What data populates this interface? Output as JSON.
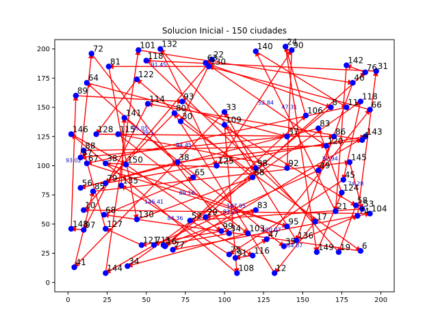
{
  "colors": {
    "edge": "#ff0000",
    "node": "#0000ff",
    "distance_text": "#0000cc"
  },
  "chart_data": {
    "type": "scatter",
    "title": "Solucion Inicial - 150 ciudades",
    "xlabel": "",
    "ylabel": "",
    "xlim": [
      -8.5,
      208.5
    ],
    "ylim": [
      -8,
      208
    ],
    "xticks": [
      0,
      25,
      50,
      75,
      100,
      125,
      150,
      175,
      200
    ],
    "yticks": [
      0,
      25,
      50,
      75,
      100,
      125,
      150,
      175,
      200
    ],
    "grid": false,
    "legend": "none",
    "cities": [
      {
        "id": "72",
        "x": 15,
        "y": 196
      },
      {
        "id": "81",
        "x": 26,
        "y": 185
      },
      {
        "id": "64",
        "x": 12,
        "y": 171
      },
      {
        "id": "89",
        "x": 5,
        "y": 160
      },
      {
        "id": "146",
        "x": 2,
        "y": 127
      },
      {
        "id": "128",
        "x": 18,
        "y": 127
      },
      {
        "id": "115",
        "x": 32,
        "y": 127
      },
      {
        "id": "141",
        "x": 36,
        "y": 141
      },
      {
        "id": "114",
        "x": 51,
        "y": 153
      },
      {
        "id": "122",
        "x": 44,
        "y": 174
      },
      {
        "id": "118",
        "x": 50,
        "y": 190
      },
      {
        "id": "101",
        "x": 45,
        "y": 199
      },
      {
        "id": "132",
        "x": 59,
        "y": 200
      },
      {
        "id": "93",
        "x": 73,
        "y": 155
      },
      {
        "id": "63",
        "x": 88,
        "y": 188
      },
      {
        "id": "22",
        "x": 92,
        "y": 191
      },
      {
        "id": "130",
        "x": 90,
        "y": 185
      },
      {
        "id": "140",
        "x": 120,
        "y": 198
      },
      {
        "id": "24",
        "x": 139,
        "y": 202
      },
      {
        "id": "90",
        "x": 143,
        "y": 199
      },
      {
        "id": "142",
        "x": 178,
        "y": 186
      },
      {
        "id": "76",
        "x": 190,
        "y": 180
      },
      {
        "id": "31",
        "x": 197,
        "y": 181
      },
      {
        "id": "46",
        "x": 182,
        "y": 171
      },
      {
        "id": "118b",
        "x": 187,
        "y": 155
      },
      {
        "id": "66",
        "x": 193,
        "y": 148
      },
      {
        "id": "11",
        "x": 178,
        "y": 150
      },
      {
        "id": "8",
        "x": 168,
        "y": 150
      },
      {
        "id": "83b",
        "x": 160,
        "y": 132
      },
      {
        "id": "86",
        "x": 170,
        "y": 125
      },
      {
        "id": "143",
        "x": 190,
        "y": 125
      },
      {
        "id": "4",
        "x": 188,
        "y": 122
      },
      {
        "id": "120",
        "x": 165,
        "y": 117
      },
      {
        "id": "145",
        "x": 180,
        "y": 103
      },
      {
        "id": "49",
        "x": 160,
        "y": 96
      },
      {
        "id": "45",
        "x": 176,
        "y": 88
      },
      {
        "id": "124",
        "x": 175,
        "y": 77
      },
      {
        "id": "58",
        "x": 184,
        "y": 66
      },
      {
        "id": "53",
        "x": 188,
        "y": 63
      },
      {
        "id": "104",
        "x": 193,
        "y": 59
      },
      {
        "id": "74",
        "x": 185,
        "y": 57
      },
      {
        "id": "21",
        "x": 171,
        "y": 61
      },
      {
        "id": "6",
        "x": 187,
        "y": 27
      },
      {
        "id": "19",
        "x": 173,
        "y": 26
      },
      {
        "id": "149",
        "x": 159,
        "y": 26
      },
      {
        "id": "136",
        "x": 146,
        "y": 36
      },
      {
        "id": "35",
        "x": 138,
        "y": 31
      },
      {
        "id": "12",
        "x": 132,
        "y": 8
      },
      {
        "id": "116",
        "x": 118,
        "y": 23
      },
      {
        "id": "108",
        "x": 108,
        "y": 8
      },
      {
        "id": "91",
        "x": 107,
        "y": 21
      },
      {
        "id": "75",
        "x": 103,
        "y": 24
      },
      {
        "id": "47",
        "x": 127,
        "y": 37
      },
      {
        "id": "17",
        "x": 158,
        "y": 52
      },
      {
        "id": "95",
        "x": 140,
        "y": 48
      },
      {
        "id": "103",
        "x": 115,
        "y": 42
      },
      {
        "id": "83",
        "x": 120,
        "y": 62
      },
      {
        "id": "34",
        "x": 103,
        "y": 42
      },
      {
        "id": "99",
        "x": 98,
        "y": 44
      },
      {
        "id": "29",
        "x": 88,
        "y": 56
      },
      {
        "id": "52",
        "x": 78,
        "y": 53
      },
      {
        "id": "77",
        "x": 67,
        "y": 28
      },
      {
        "id": "16",
        "x": 62,
        "y": 31
      },
      {
        "id": "3",
        "x": 61,
        "y": 32
      },
      {
        "id": "71",
        "x": 55,
        "y": 32
      },
      {
        "id": "121",
        "x": 47,
        "y": 32
      },
      {
        "id": "34b",
        "x": 38,
        "y": 14
      },
      {
        "id": "144",
        "x": 24,
        "y": 8
      },
      {
        "id": "41",
        "x": 4,
        "y": 13
      },
      {
        "id": "148",
        "x": 2,
        "y": 46
      },
      {
        "id": "97",
        "x": 10,
        "y": 45
      },
      {
        "id": "127",
        "x": 24,
        "y": 46
      },
      {
        "id": "10",
        "x": 10,
        "y": 62
      },
      {
        "id": "68",
        "x": 23,
        "y": 58
      },
      {
        "id": "130b",
        "x": 44,
        "y": 54
      },
      {
        "id": "56",
        "x": 8,
        "y": 81
      },
      {
        "id": "85",
        "x": 16,
        "y": 78
      },
      {
        "id": "79",
        "x": 24,
        "y": 85
      },
      {
        "id": "135",
        "x": 34,
        "y": 83
      },
      {
        "id": "57",
        "x": 8,
        "y": 107
      },
      {
        "id": "88",
        "x": 10,
        "y": 113
      },
      {
        "id": "67",
        "x": 12,
        "y": 102
      },
      {
        "id": "38",
        "x": 24,
        "y": 102
      },
      {
        "id": "150",
        "x": 37,
        "y": 101
      },
      {
        "id": "38b",
        "x": 70,
        "y": 103
      },
      {
        "id": "80",
        "x": 68,
        "y": 145
      },
      {
        "id": "30",
        "x": 72,
        "y": 138
      },
      {
        "id": "33",
        "x": 100,
        "y": 146
      },
      {
        "id": "109",
        "x": 100,
        "y": 135
      },
      {
        "id": "98",
        "x": 120,
        "y": 98
      },
      {
        "id": "88b",
        "x": 118,
        "y": 90
      },
      {
        "id": "92",
        "x": 140,
        "y": 98
      },
      {
        "id": "37",
        "x": 140,
        "y": 125
      },
      {
        "id": "106",
        "x": 152,
        "y": 143
      },
      {
        "id": "125",
        "x": 95,
        "y": 100
      },
      {
        "id": "65",
        "x": 80,
        "y": 90
      }
    ],
    "distance_labels": [
      "100.07",
      "95.05",
      "83.25",
      "89.16",
      "74.28",
      "91.45",
      "107.95",
      "146.41",
      "52.84",
      "52.94",
      "93.02",
      "47.31",
      "84.36",
      "84.07",
      "39.5",
      "94.45"
    ]
  }
}
